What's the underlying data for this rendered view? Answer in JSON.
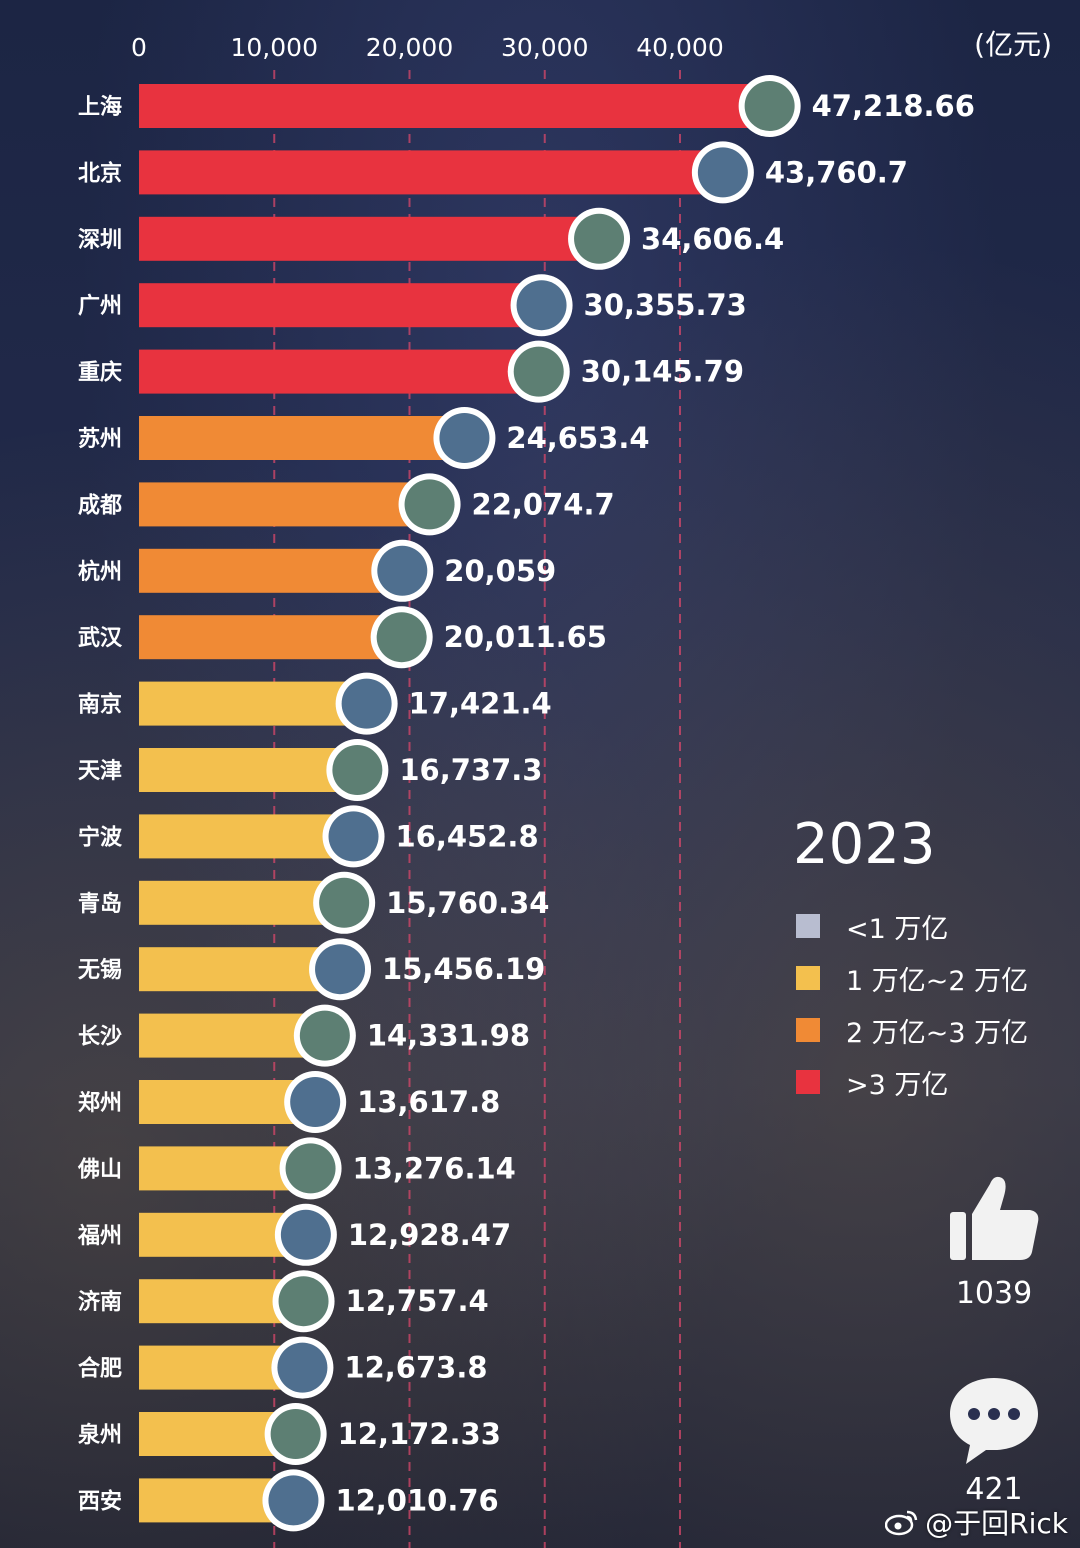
{
  "chart_data": {
    "type": "bar",
    "orientation": "horizontal",
    "unit": "(亿元)",
    "x_ticks": [
      0,
      10000,
      20000,
      30000,
      40000
    ],
    "x_tick_labels": [
      "0",
      "10,000",
      "20,000",
      "30,000",
      "40,000"
    ],
    "xlim": [
      0,
      50000
    ],
    "categories": [
      "上海",
      "北京",
      "深圳",
      "广州",
      "重庆",
      "苏州",
      "成都",
      "杭州",
      "武汉",
      "南京",
      "天津",
      "宁波",
      "青岛",
      "无锡",
      "长沙",
      "郑州",
      "佛山",
      "福州",
      "济南",
      "合肥",
      "泉州",
      "西安"
    ],
    "values": [
      47218.66,
      43760.7,
      34606.4,
      30355.73,
      30145.79,
      24653.4,
      22074.7,
      20059,
      20011.65,
      17421.4,
      16737.3,
      16452.8,
      15760.34,
      15456.19,
      14331.98,
      13617.8,
      13276.14,
      12928.47,
      12757.4,
      12673.8,
      12172.33,
      12010.76
    ],
    "value_labels": [
      "47,218.66",
      "43,760.7",
      "34,606.4",
      "30,355.73",
      "30,145.79",
      "24,653.4",
      "22,074.7",
      "20,059",
      "20,011.65",
      "17,421.4",
      "16,737.3",
      "16,452.8",
      "15,760.34",
      "15,456.19",
      "14,331.98",
      "13,617.8",
      "13,276.14",
      "12,928.47",
      "12,757.4",
      "12,673.8",
      "12,172.33",
      "12,010.76"
    ],
    "year": "2023",
    "legend": [
      {
        "label": "<1 万亿",
        "color": "#b8bdd0"
      },
      {
        "label": "1 万亿~2 万亿",
        "color": "#f3c04e"
      },
      {
        "label": "2 万亿~3 万亿",
        "color": "#f08a35"
      },
      {
        "label": ">3 万亿",
        "color": "#e8333f"
      }
    ],
    "legend_placement": "right"
  },
  "colors": {
    "above_3": "#e8333f",
    "from_2_to_3": "#f08a35",
    "from_1_to_2": "#f3c04e",
    "gridline": "#d8476a"
  },
  "social": {
    "like_count": "1039",
    "comment_count": "421",
    "like_icon": "thumbs-up-icon",
    "comment_icon": "speech-bubble-icon"
  },
  "watermark": {
    "text": "@于回Rick",
    "icon": "weibo-icon"
  }
}
